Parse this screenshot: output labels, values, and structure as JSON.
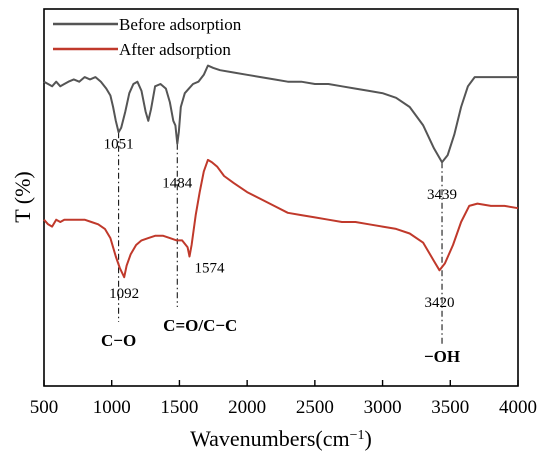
{
  "chart_data": {
    "type": "line",
    "xlabel": "Wavenumbers(cm",
    "xlabel_sup": "−1",
    "xlabel_close": ")",
    "ylabel": "T (%)",
    "xlim": [
      500,
      4000
    ],
    "xticks": [
      "500",
      "1000",
      "1500",
      "2000",
      "2500",
      "3000",
      "3500",
      "4000"
    ],
    "yticks": "none",
    "grid": false,
    "legend_position": "top-left",
    "series": [
      {
        "name": "Before adsorption",
        "color": "#555555",
        "points": [
          [
            500,
            91
          ],
          [
            530,
            90
          ],
          [
            560,
            89
          ],
          [
            590,
            91
          ],
          [
            620,
            89
          ],
          [
            650,
            90
          ],
          [
            680,
            91
          ],
          [
            720,
            92
          ],
          [
            760,
            91
          ],
          [
            800,
            93
          ],
          [
            840,
            92
          ],
          [
            880,
            93
          ],
          [
            920,
            91
          ],
          [
            960,
            88
          ],
          [
            990,
            85
          ],
          [
            1010,
            80
          ],
          [
            1030,
            74
          ],
          [
            1051,
            69
          ],
          [
            1070,
            71
          ],
          [
            1100,
            78
          ],
          [
            1130,
            86
          ],
          [
            1160,
            90
          ],
          [
            1190,
            91
          ],
          [
            1220,
            87
          ],
          [
            1250,
            78
          ],
          [
            1270,
            74
          ],
          [
            1290,
            79
          ],
          [
            1320,
            89
          ],
          [
            1360,
            90
          ],
          [
            1400,
            88
          ],
          [
            1430,
            82
          ],
          [
            1455,
            74
          ],
          [
            1470,
            72
          ],
          [
            1484,
            64
          ],
          [
            1495,
            69
          ],
          [
            1510,
            80
          ],
          [
            1540,
            86
          ],
          [
            1570,
            88
          ],
          [
            1600,
            90
          ],
          [
            1640,
            91
          ],
          [
            1680,
            94
          ],
          [
            1710,
            98
          ],
          [
            1750,
            97
          ],
          [
            1800,
            96
          ],
          [
            1900,
            95
          ],
          [
            2000,
            94
          ],
          [
            2100,
            93
          ],
          [
            2200,
            92
          ],
          [
            2300,
            91
          ],
          [
            2400,
            91
          ],
          [
            2500,
            90
          ],
          [
            2600,
            90
          ],
          [
            2700,
            89
          ],
          [
            2800,
            88
          ],
          [
            2900,
            87
          ],
          [
            3000,
            86
          ],
          [
            3100,
            84
          ],
          [
            3200,
            80
          ],
          [
            3300,
            72
          ],
          [
            3380,
            62
          ],
          [
            3439,
            56
          ],
          [
            3480,
            59
          ],
          [
            3530,
            68
          ],
          [
            3580,
            80
          ],
          [
            3630,
            89
          ],
          [
            3680,
            93
          ],
          [
            3750,
            93
          ],
          [
            3850,
            93
          ],
          [
            3950,
            93
          ],
          [
            4000,
            93
          ]
        ]
      },
      {
        "name": "After adsorption",
        "color": "#c0392b",
        "points": [
          [
            500,
            31
          ],
          [
            530,
            29
          ],
          [
            560,
            28
          ],
          [
            590,
            31
          ],
          [
            620,
            30
          ],
          [
            650,
            31
          ],
          [
            700,
            31
          ],
          [
            750,
            31
          ],
          [
            800,
            31
          ],
          [
            850,
            30
          ],
          [
            900,
            29
          ],
          [
            950,
            27
          ],
          [
            990,
            23
          ],
          [
            1030,
            15
          ],
          [
            1060,
            10
          ],
          [
            1092,
            6
          ],
          [
            1110,
            11
          ],
          [
            1140,
            16
          ],
          [
            1180,
            20
          ],
          [
            1220,
            22
          ],
          [
            1270,
            23
          ],
          [
            1320,
            24
          ],
          [
            1380,
            24
          ],
          [
            1430,
            23
          ],
          [
            1480,
            22
          ],
          [
            1520,
            22
          ],
          [
            1560,
            19
          ],
          [
            1574,
            15
          ],
          [
            1590,
            20
          ],
          [
            1620,
            33
          ],
          [
            1650,
            43
          ],
          [
            1680,
            52
          ],
          [
            1710,
            57
          ],
          [
            1740,
            56
          ],
          [
            1780,
            54
          ],
          [
            1830,
            50
          ],
          [
            1900,
            47
          ],
          [
            2000,
            43
          ],
          [
            2100,
            40
          ],
          [
            2200,
            37
          ],
          [
            2300,
            34
          ],
          [
            2400,
            33
          ],
          [
            2500,
            32
          ],
          [
            2600,
            31
          ],
          [
            2700,
            30
          ],
          [
            2800,
            30
          ],
          [
            2900,
            29
          ],
          [
            3000,
            28
          ],
          [
            3100,
            27
          ],
          [
            3200,
            25
          ],
          [
            3300,
            21
          ],
          [
            3380,
            13
          ],
          [
            3420,
            9
          ],
          [
            3460,
            12
          ],
          [
            3520,
            20
          ],
          [
            3580,
            30
          ],
          [
            3640,
            37
          ],
          [
            3700,
            38
          ],
          [
            3800,
            37
          ],
          [
            3900,
            37
          ],
          [
            4000,
            36
          ]
        ]
      }
    ],
    "annotations": [
      {
        "label": "1051",
        "x": 1051,
        "y": 69,
        "label_y": 62
      },
      {
        "label": "1484",
        "x": 1484,
        "y": 64,
        "label_y": 45
      },
      {
        "label": "3439",
        "x": 3439,
        "y": 56,
        "label_y": 40
      },
      {
        "label": "1092",
        "x": 1092,
        "y": 6,
        "label_y": -3
      },
      {
        "label": "1574",
        "x": 1574,
        "y": 15,
        "label_y": 8
      },
      {
        "label": "3420",
        "x": 3420,
        "y": 9,
        "label_y": -7
      }
    ],
    "groups": [
      {
        "label": "C−O",
        "x": 1051
      },
      {
        "label": "C=O/C−C",
        "x": 1484
      },
      {
        "label": "−OH",
        "x": 3439
      }
    ]
  }
}
